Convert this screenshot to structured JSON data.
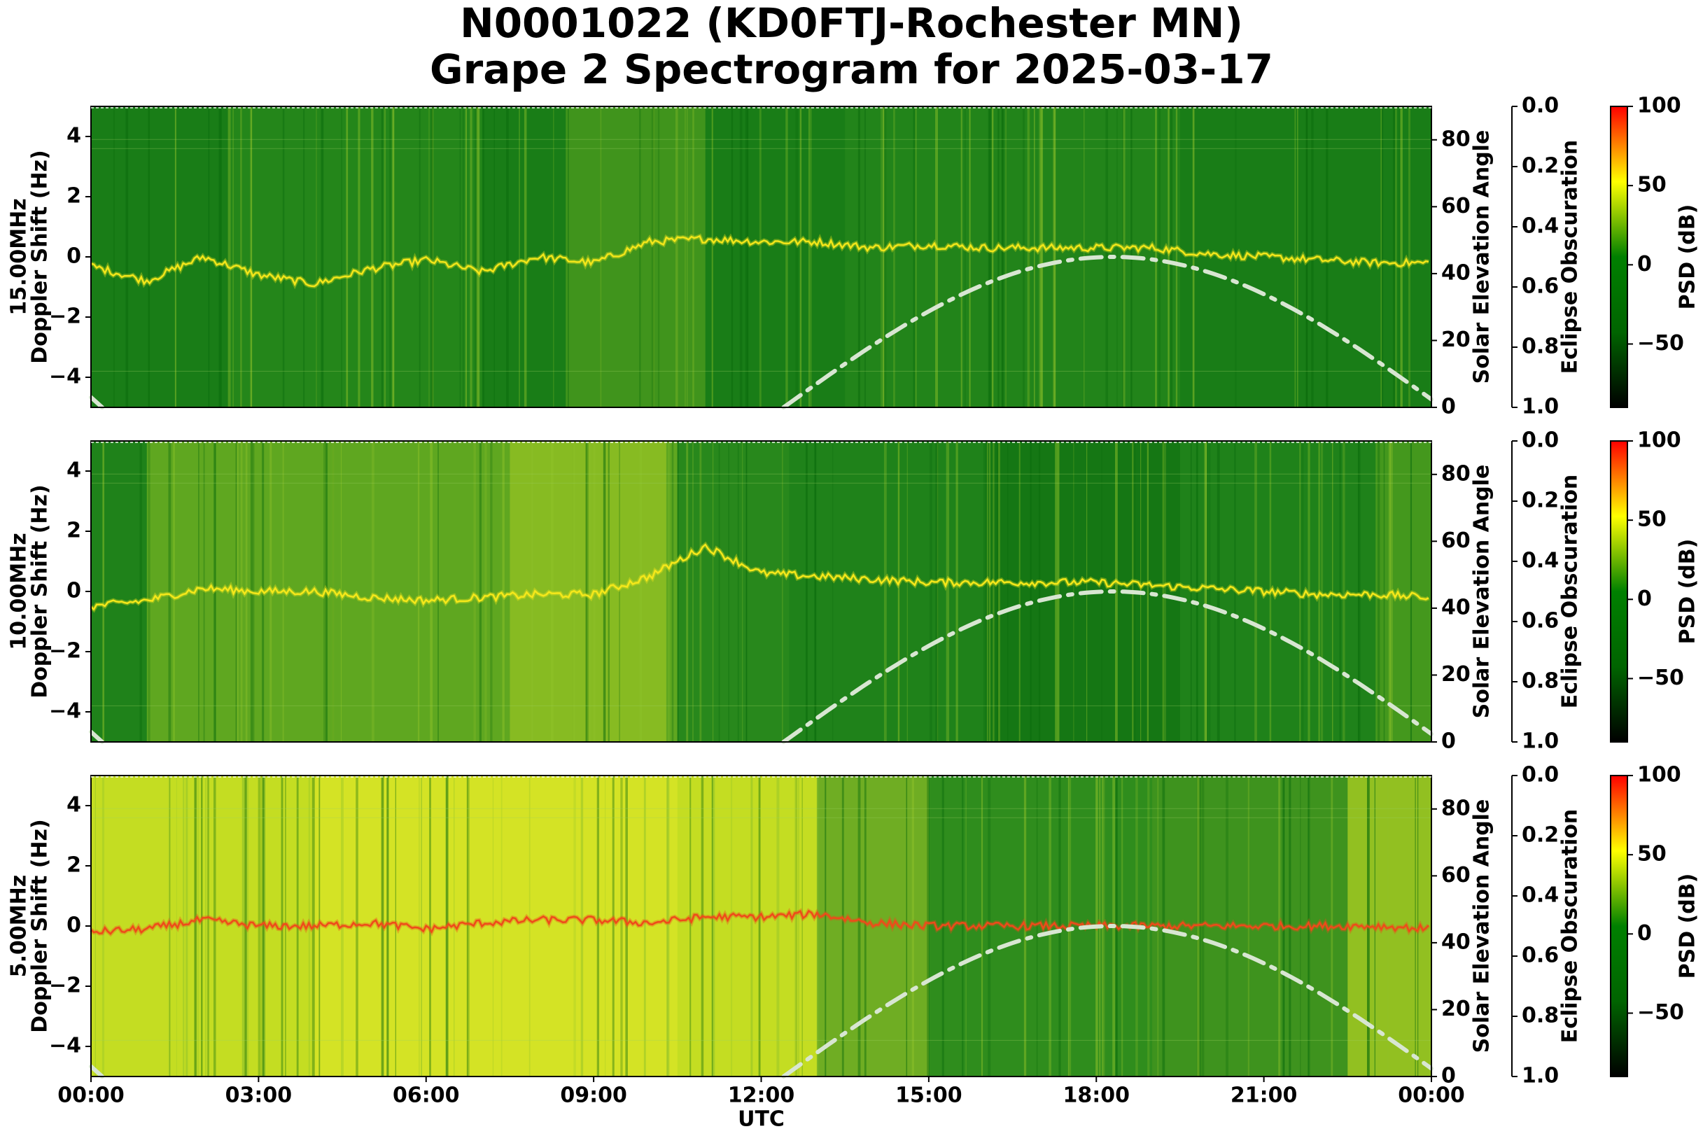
{
  "title_line1": "N0001022 (KD0FTJ-Rochester MN)",
  "title_line2": "Grape 2 Spectrogram for 2025-03-17",
  "chart_data": [
    {
      "type": "heatmap",
      "panel": "15.00MHz",
      "ylabel": "15.00MHz\nDoppler Shift (Hz)",
      "y_ticks": [
        4,
        2,
        0,
        -2,
        -4
      ],
      "ylim": [
        -5,
        5
      ],
      "xlim_hours": [
        0,
        24
      ],
      "doppler_trace": {
        "hours": [
          0,
          1,
          2,
          3,
          4,
          5,
          6,
          7,
          8,
          9,
          10,
          11,
          12,
          13,
          14,
          15,
          16,
          17,
          18,
          19,
          20,
          21,
          22,
          23,
          24
        ],
        "hz": [
          -0.3,
          -0.8,
          0.0,
          -0.6,
          -0.9,
          -0.4,
          -0.1,
          -0.5,
          0.0,
          -0.2,
          0.5,
          0.6,
          0.5,
          0.5,
          0.3,
          0.4,
          0.3,
          0.3,
          0.3,
          0.3,
          0.1,
          0.0,
          -0.1,
          -0.2,
          -0.2
        ]
      },
      "colors": {
        "background": "#1b7f1b",
        "trace": "#f2e61a"
      }
    },
    {
      "type": "heatmap",
      "panel": "10.00MHz",
      "ylabel": "10.00MHz\nDoppler Shift (Hz)",
      "y_ticks": [
        4,
        2,
        0,
        -2,
        -4
      ],
      "ylim": [
        -5,
        5
      ],
      "xlim_hours": [
        0,
        24
      ],
      "doppler_trace": {
        "hours": [
          0,
          1,
          2,
          3,
          4,
          5,
          6,
          7,
          8,
          9,
          10,
          11,
          12,
          13,
          14,
          15,
          16,
          17,
          18,
          19,
          20,
          21,
          22,
          23,
          24
        ],
        "hz": [
          -0.5,
          -0.3,
          0.1,
          0.0,
          0.0,
          -0.2,
          -0.3,
          -0.2,
          -0.1,
          -0.1,
          0.5,
          1.5,
          0.6,
          0.5,
          0.4,
          0.3,
          0.3,
          0.3,
          0.3,
          0.2,
          0.1,
          0.0,
          -0.1,
          -0.1,
          -0.2
        ]
      },
      "colors": {
        "background": "#2a8a1c",
        "trace": "#f5e81a"
      }
    },
    {
      "type": "heatmap",
      "panel": "5.00MHz",
      "ylabel": "5.00MHz\nDoppler Shift (Hz)",
      "y_ticks": [
        4,
        2,
        0,
        -2,
        -4
      ],
      "ylim": [
        -5,
        5
      ],
      "xlim_hours": [
        0,
        24
      ],
      "xlabel": "UTC",
      "x_ticks": [
        "00:00",
        "03:00",
        "06:00",
        "09:00",
        "12:00",
        "15:00",
        "18:00",
        "21:00",
        "00:00"
      ],
      "doppler_trace": {
        "hours": [
          0,
          1,
          2,
          3,
          4,
          5,
          6,
          7,
          8,
          9,
          10,
          11,
          12,
          13,
          14,
          15,
          16,
          17,
          18,
          19,
          20,
          21,
          22,
          23,
          24
        ],
        "hz": [
          -0.2,
          -0.1,
          0.2,
          0.0,
          0.0,
          0.1,
          -0.1,
          0.1,
          0.2,
          0.2,
          0.1,
          0.3,
          0.3,
          0.4,
          0.1,
          0.0,
          0.0,
          0.0,
          0.0,
          0.0,
          0.0,
          0.0,
          0.0,
          0.0,
          -0.1
        ]
      },
      "colors": {
        "background": "#c4dd22",
        "trace": "#ef4a1a"
      }
    }
  ],
  "solar_elevation": {
    "label": "Solar Elevation Angle",
    "ticks": [
      80,
      60,
      40,
      20,
      0
    ],
    "range": [
      0,
      90
    ],
    "hours": [
      0.0,
      0.2,
      12.4,
      13.5,
      15.0,
      16.5,
      18.0,
      18.5,
      19.5,
      21.0,
      22.5,
      24.0
    ],
    "degrees": [
      3,
      0,
      0,
      9,
      23,
      36,
      44,
      45,
      43,
      34,
      20,
      3
    ],
    "color": "#d8e6d2",
    "style": "dash-dot"
  },
  "eclipse_axis": {
    "label": "Eclipse Obscuration",
    "ticks": [
      "0.0",
      "0.2",
      "0.4",
      "0.6",
      "0.8",
      "1.0"
    ]
  },
  "colorbar": {
    "label": "PSD (dB)",
    "ticks": [
      "100",
      "50",
      "0",
      "−50"
    ],
    "range": [
      -90,
      100
    ],
    "colors": [
      "#000000",
      "#006400",
      "#008000",
      "#ffff00",
      "#ff0000"
    ]
  }
}
